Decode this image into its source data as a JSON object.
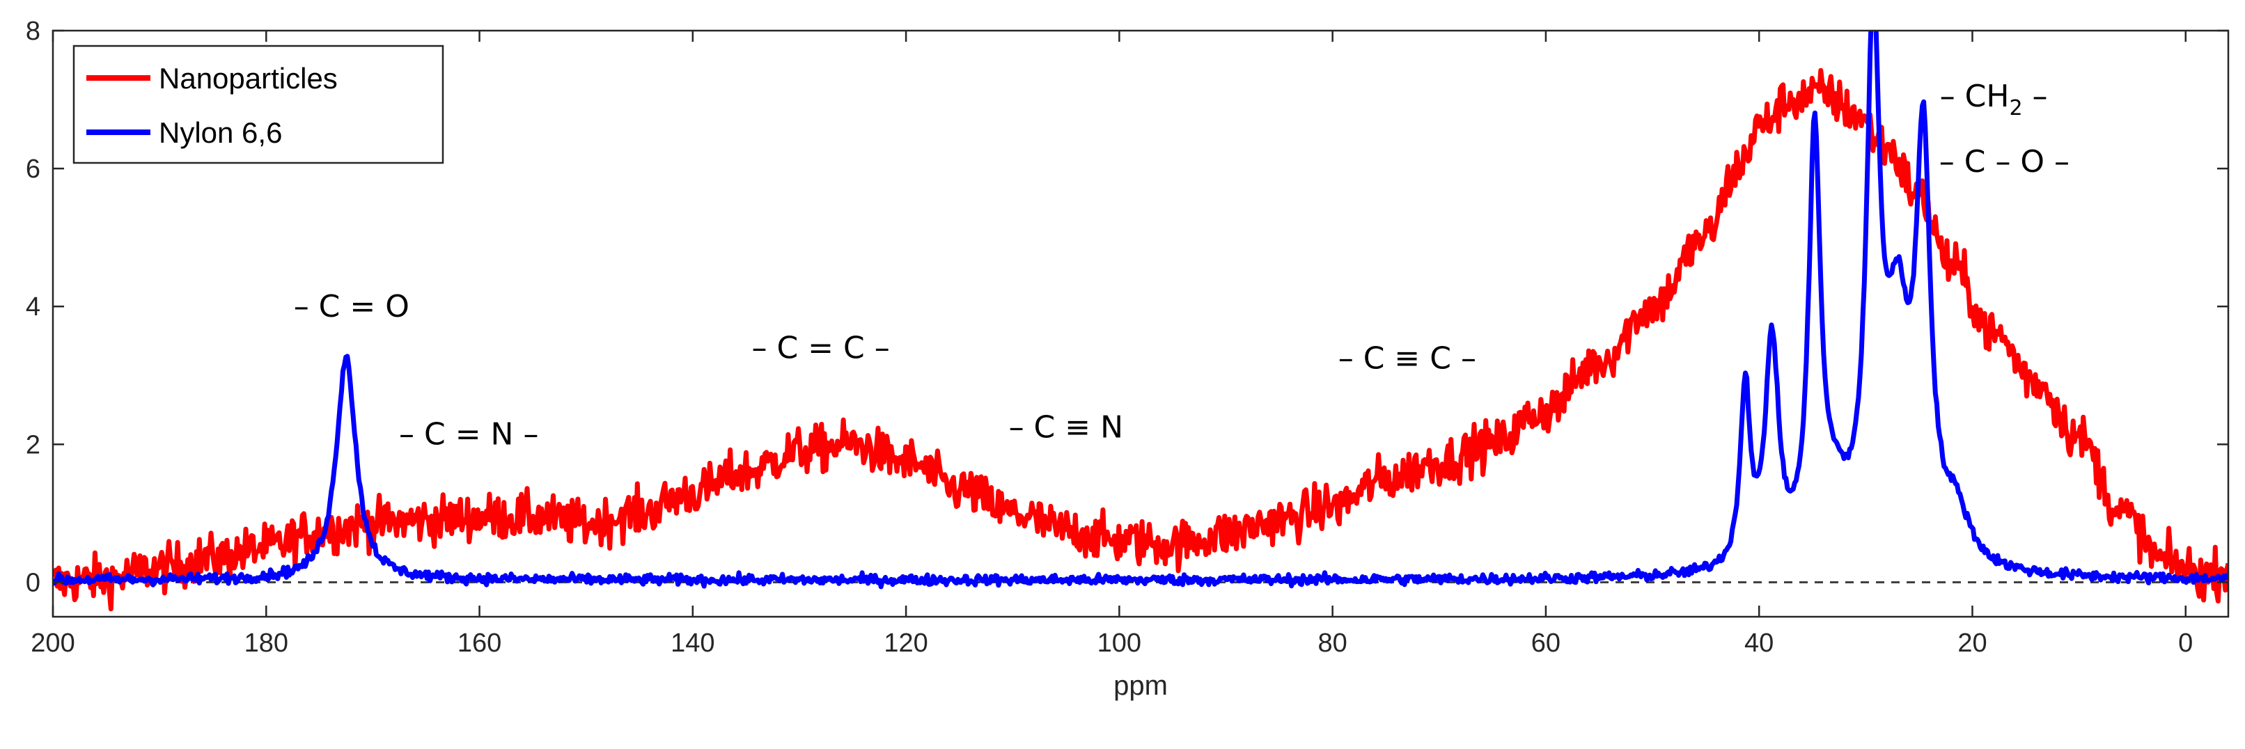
{
  "chart_data": {
    "type": "line",
    "title": "",
    "xlabel": "ppm",
    "ylabel": "",
    "xlim": [
      200,
      -4
    ],
    "ylim": [
      -0.5,
      8
    ],
    "x_ticks": [
      200,
      180,
      160,
      140,
      120,
      100,
      80,
      60,
      40,
      20,
      0
    ],
    "y_ticks": [
      0,
      2,
      4,
      6,
      8
    ],
    "grid": false,
    "legend_position": "top-left",
    "baseline": 0,
    "series": [
      {
        "name": "Nanoparticles",
        "color": "#ff0000",
        "anchors": [
          [
            200,
            0.0
          ],
          [
            195,
            0.05
          ],
          [
            190,
            0.2
          ],
          [
            185,
            0.35
          ],
          [
            180,
            0.5
          ],
          [
            175,
            0.75
          ],
          [
            170,
            0.85
          ],
          [
            165,
            0.9
          ],
          [
            160,
            0.95
          ],
          [
            155,
            0.95
          ],
          [
            150,
            0.85
          ],
          [
            145,
            1.0
          ],
          [
            140,
            1.3
          ],
          [
            135,
            1.6
          ],
          [
            130,
            1.9
          ],
          [
            125,
            2.0
          ],
          [
            120,
            1.75
          ],
          [
            115,
            1.35
          ],
          [
            110,
            1.0
          ],
          [
            105,
            0.75
          ],
          [
            100,
            0.6
          ],
          [
            95,
            0.55
          ],
          [
            90,
            0.7
          ],
          [
            85,
            0.9
          ],
          [
            80,
            1.1
          ],
          [
            75,
            1.5
          ],
          [
            70,
            1.75
          ],
          [
            65,
            2.0
          ],
          [
            60,
            2.5
          ],
          [
            55,
            3.2
          ],
          [
            50,
            4.0
          ],
          [
            45,
            5.0
          ],
          [
            42,
            6.0
          ],
          [
            40,
            6.6
          ],
          [
            37,
            7.0
          ],
          [
            34,
            7.1
          ],
          [
            31,
            6.8
          ],
          [
            28,
            6.3
          ],
          [
            25,
            5.6
          ],
          [
            22,
            4.6
          ],
          [
            18,
            3.6
          ],
          [
            14,
            2.9
          ],
          [
            10,
            2.1
          ],
          [
            6,
            1.0
          ],
          [
            2,
            0.3
          ],
          [
            -2,
            0.1
          ],
          [
            -4,
            0.2
          ]
        ],
        "noise": 0.32
      },
      {
        "name": "Nylon 6,6",
        "color": "#0000ff",
        "baseline_value": 0.03,
        "peaks": [
          {
            "center": 172.5,
            "height": 3.25,
            "width": 1.1
          },
          {
            "center": 41.3,
            "height": 2.6,
            "width": 0.55
          },
          {
            "center": 38.8,
            "height": 3.25,
            "width": 0.75
          },
          {
            "center": 34.8,
            "height": 6.0,
            "width": 0.65
          },
          {
            "center": 29.3,
            "height": 7.35,
            "width": 0.75
          },
          {
            "center": 27.0,
            "height": 3.2,
            "width": 1.4
          },
          {
            "center": 24.6,
            "height": 5.75,
            "width": 0.8
          },
          {
            "center": 33.0,
            "height": 0.8,
            "width": 1.8
          },
          {
            "center": 21.5,
            "height": 0.7,
            "width": 1.5
          }
        ],
        "noise": 0.07
      }
    ],
    "annotations": [
      {
        "text": "– C = O",
        "x": 172,
        "y": 3.85
      },
      {
        "text": "– C = N –",
        "x": 161,
        "y": 2.0
      },
      {
        "text": "– C = C –",
        "x": 128,
        "y": 3.25
      },
      {
        "text": "– C ≡ N",
        "x": 105,
        "y": 2.1
      },
      {
        "text": "– C ≡ C –",
        "x": 73,
        "y": 3.1
      },
      {
        "text": "– CH",
        "sub": "2",
        "tail": " –",
        "x": 18,
        "y": 6.9
      },
      {
        "text": "– C – O –",
        "x": 17,
        "y": 5.95
      }
    ]
  }
}
